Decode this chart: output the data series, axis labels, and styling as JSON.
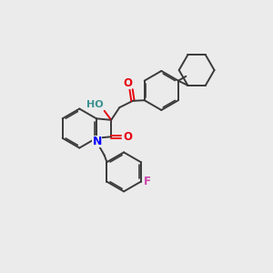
{
  "background_color": "#ebebeb",
  "bond_color": "#3a3a3a",
  "oxygen_color": "#e8000d",
  "nitrogen_color": "#0000ff",
  "fluorine_color": "#cc44aa",
  "hydrogen_color": "#3d9090",
  "figsize": [
    3.0,
    3.0
  ],
  "dpi": 100,
  "xlim": [
    0,
    10
  ],
  "ylim": [
    0,
    10
  ]
}
